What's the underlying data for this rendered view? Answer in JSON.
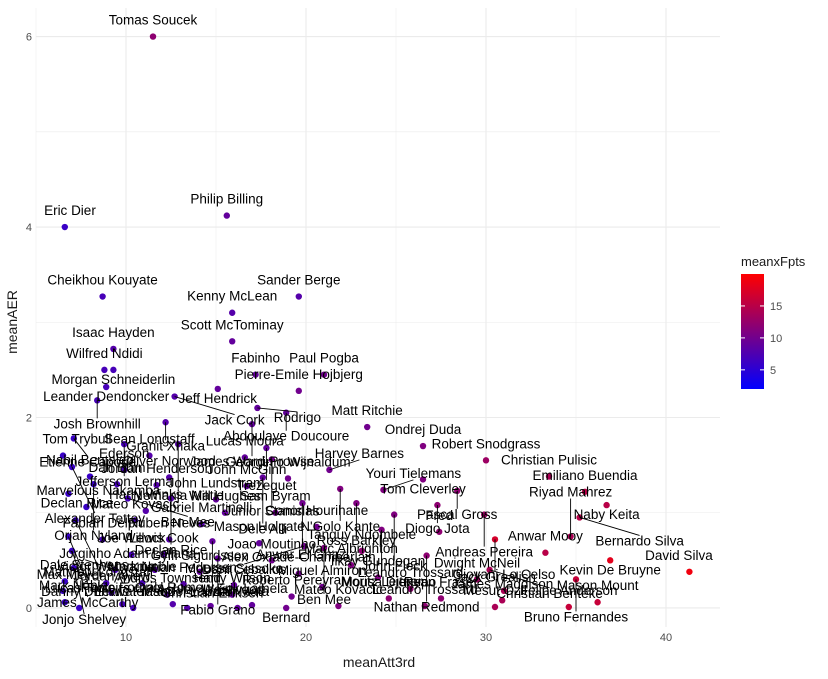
{
  "chart_data": {
    "type": "scatter",
    "title": "",
    "xlabel": "meanAtt3rd",
    "ylabel": "meanAER",
    "xlim": [
      5,
      43
    ],
    "ylim": [
      -0.2,
      6.3
    ],
    "x_ticks": [
      10,
      20,
      30,
      40
    ],
    "y_ticks": [
      0,
      2,
      4,
      6
    ],
    "grid": true,
    "color_scale": {
      "name": "meanxFpts",
      "low_color": "#0000FF",
      "high_color": "#FF0000",
      "range": [
        2,
        20
      ],
      "ticks": [
        5,
        10,
        15
      ]
    },
    "points": [
      {
        "x": 11.5,
        "y": 6.0,
        "c": 12,
        "label": "Tomas Soucek"
      },
      {
        "x": 6.6,
        "y": 4.0,
        "c": 6,
        "label": "Eric Dier"
      },
      {
        "x": 15.6,
        "y": 4.12,
        "c": 9,
        "label": "Philip Billing"
      },
      {
        "x": 8.7,
        "y": 3.27,
        "c": 7,
        "label": "Cheikhou Kouyate"
      },
      {
        "x": 19.6,
        "y": 3.27,
        "c": 8,
        "label": "Sander Berge"
      },
      {
        "x": 15.9,
        "y": 3.1,
        "c": 8,
        "label": "Kenny McLean"
      },
      {
        "x": 9.3,
        "y": 2.72,
        "c": 8,
        "label": "Isaac Hayden"
      },
      {
        "x": 15.9,
        "y": 2.8,
        "c": 9,
        "label": "Scott McTominay"
      },
      {
        "x": 8.8,
        "y": 2.5,
        "c": 7,
        "label": "Wilfred Ndidi"
      },
      {
        "x": 9.3,
        "y": 2.5,
        "c": 7,
        "label": "Morgan Schneiderlin"
      },
      {
        "x": 17.2,
        "y": 2.45,
        "c": 9,
        "label": "Fabinho"
      },
      {
        "x": 21.0,
        "y": 2.45,
        "c": 10,
        "label": "Paul Pogba"
      },
      {
        "x": 8.9,
        "y": 2.32,
        "c": 7,
        "label": "Leander Dendoncker"
      },
      {
        "x": 15.1,
        "y": 2.3,
        "c": 9,
        "label": "Jeff Hendrick"
      },
      {
        "x": 19.6,
        "y": 2.28,
        "c": 10,
        "label": "Pierre-Emile Hojbjerg"
      },
      {
        "x": 8.4,
        "y": 2.18,
        "c": 7,
        "label": "Josh Brownhill"
      },
      {
        "x": 12.7,
        "y": 2.22,
        "c": 8,
        "label": "Jack Cork"
      },
      {
        "x": 17.3,
        "y": 2.1,
        "c": 9,
        "label": "Rodrigo"
      },
      {
        "x": 18.9,
        "y": 2.05,
        "c": 9,
        "label": "Abdoulaye Doucoure"
      },
      {
        "x": 12.2,
        "y": 1.95,
        "c": 8,
        "label": "Granit Xhaka"
      },
      {
        "x": 17.0,
        "y": 1.93,
        "c": 9,
        "label": "James Ward-Prowse"
      },
      {
        "x": 23.4,
        "y": 1.9,
        "c": 10,
        "label": "Matt Ritchie"
      },
      {
        "x": 7.1,
        "y": 1.78,
        "c": 6,
        "label": "Etienne Capoue"
      },
      {
        "x": 9.9,
        "y": 1.72,
        "c": 7,
        "label": "Jefferson Lerma"
      },
      {
        "x": 12.9,
        "y": 1.72,
        "c": 8,
        "label": "Nemanja Matic"
      },
      {
        "x": 17.8,
        "y": 1.68,
        "c": 9,
        "label": "Trezeguet"
      },
      {
        "x": 26.5,
        "y": 1.7,
        "c": 11,
        "label": "Ondrej Duda"
      },
      {
        "x": 6.5,
        "y": 1.6,
        "c": 6,
        "label": "Tom Trybull"
      },
      {
        "x": 11.3,
        "y": 1.6,
        "c": 8,
        "label": "Sean Longstaff"
      },
      {
        "x": 16.6,
        "y": 1.58,
        "c": 9,
        "label": "Lucas Moura"
      },
      {
        "x": 18.1,
        "y": 1.56,
        "c": 10,
        "label": "Junior Stanislas"
      },
      {
        "x": 30.0,
        "y": 1.55,
        "c": 13,
        "label": "Robert Snodgrass"
      },
      {
        "x": 7.0,
        "y": 1.48,
        "c": 6,
        "label": "Alexander Tettey"
      },
      {
        "x": 9.9,
        "y": 1.45,
        "c": 7,
        "label": "Ederson"
      },
      {
        "x": 21.3,
        "y": 1.45,
        "c": 10,
        "label": "Harvey Barnes"
      },
      {
        "x": 8.0,
        "y": 1.38,
        "c": 6,
        "label": "Nabil Bentaleb"
      },
      {
        "x": 12.4,
        "y": 1.37,
        "c": 8,
        "label": "Oliver Norwood"
      },
      {
        "x": 17.6,
        "y": 1.37,
        "c": 9,
        "label": "Dele Alli"
      },
      {
        "x": 19.0,
        "y": 1.36,
        "c": 10,
        "label": "Georginio Wijnaldum"
      },
      {
        "x": 26.5,
        "y": 1.35,
        "c": 11,
        "label": "Tom Cleverley"
      },
      {
        "x": 33.5,
        "y": 1.38,
        "c": 14,
        "label": "Christian Pulisic"
      },
      {
        "x": 8.2,
        "y": 1.3,
        "c": 6,
        "label": "Orjan Nyland"
      },
      {
        "x": 9.5,
        "y": 1.3,
        "c": 7,
        "label": "Dan Burn"
      },
      {
        "x": 11.7,
        "y": 1.29,
        "c": 8,
        "label": "Jordan Henderson"
      },
      {
        "x": 16.7,
        "y": 1.28,
        "c": 9,
        "label": "John McGinn"
      },
      {
        "x": 21.9,
        "y": 1.25,
        "c": 11,
        "label": "N'Golo Kante"
      },
      {
        "x": 24.3,
        "y": 1.24,
        "c": 11,
        "label": "Youri Tielemans"
      },
      {
        "x": 28.4,
        "y": 1.23,
        "c": 12,
        "label": "Pascal Gross"
      },
      {
        "x": 35.5,
        "y": 1.22,
        "c": 15,
        "label": "Emiliano Buendia"
      },
      {
        "x": 6.8,
        "y": 1.2,
        "c": 6,
        "label": "Declan Rice"
      },
      {
        "x": 10.1,
        "y": 1.15,
        "c": 7,
        "label": "Ben Mee"
      },
      {
        "x": 12.5,
        "y": 1.15,
        "c": 8,
        "label": "Declan Rice"
      },
      {
        "x": 15.0,
        "y": 1.14,
        "c": 9,
        "label": "John Lundstram"
      },
      {
        "x": 19.8,
        "y": 1.1,
        "c": 10,
        "label": "Anwar El Ghazi"
      },
      {
        "x": 22.8,
        "y": 1.1,
        "c": 11,
        "label": "Ross Barkley"
      },
      {
        "x": 27.3,
        "y": 1.08,
        "c": 12,
        "label": "Diogo Jota"
      },
      {
        "x": 36.7,
        "y": 1.08,
        "c": 15,
        "label": "Naby Keita"
      },
      {
        "x": 7.8,
        "y": 1.06,
        "c": 6,
        "label": "Marvelous Nakamba"
      },
      {
        "x": 11.1,
        "y": 1.02,
        "c": 8,
        "label": "Harry Winks"
      },
      {
        "x": 15.5,
        "y": 1.0,
        "c": 9,
        "label": "Will Hughes"
      },
      {
        "x": 18.3,
        "y": 1.0,
        "c": 10,
        "label": "Sam Byram"
      },
      {
        "x": 24.9,
        "y": 0.98,
        "c": 11,
        "label": "John Fleck"
      },
      {
        "x": 29.9,
        "y": 0.98,
        "c": 13,
        "label": "Andreas Pereira"
      },
      {
        "x": 35.2,
        "y": 0.95,
        "c": 15,
        "label": "Bernardo Silva"
      },
      {
        "x": 7.2,
        "y": 0.92,
        "c": 6,
        "label": "Matthew Longstaff"
      },
      {
        "x": 10.5,
        "y": 0.92,
        "c": 7,
        "label": "Mateo Kovacic"
      },
      {
        "x": 14.2,
        "y": 0.88,
        "c": 8,
        "label": "Gabriel Martinelli"
      },
      {
        "x": 20.6,
        "y": 0.85,
        "c": 10,
        "label": "Conor Hourihane"
      },
      {
        "x": 24.2,
        "y": 0.82,
        "c": 11,
        "label": "Moritz Leitner"
      },
      {
        "x": 27.4,
        "y": 0.8,
        "c": 12,
        "label": "Fred"
      },
      {
        "x": 30.5,
        "y": 0.72,
        "c": 17,
        "label": "Jack Grealish"
      },
      {
        "x": 34.7,
        "y": 0.75,
        "c": 14,
        "label": "Riyad Mahrez"
      },
      {
        "x": 6.8,
        "y": 0.75,
        "c": 6,
        "label": "Lucas Torreira"
      },
      {
        "x": 8.7,
        "y": 0.72,
        "c": 7,
        "label": "Fabian Delph"
      },
      {
        "x": 12.4,
        "y": 0.72,
        "c": 8,
        "label": "Ruben Neves"
      },
      {
        "x": 14.8,
        "y": 0.7,
        "c": 9,
        "label": "Christian Eriksen"
      },
      {
        "x": 17.4,
        "y": 0.68,
        "c": 9,
        "label": "Mason Holgate"
      },
      {
        "x": 19.9,
        "y": 0.65,
        "c": 10,
        "label": "Dani Ceballos"
      },
      {
        "x": 21.0,
        "y": 0.63,
        "c": 11,
        "label": "Ben Mee"
      },
      {
        "x": 23.1,
        "y": 0.6,
        "c": 12,
        "label": "Tanguy Ndombele"
      },
      {
        "x": 26.7,
        "y": 0.55,
        "c": 12,
        "label": "Nathan Redmond"
      },
      {
        "x": 33.3,
        "y": 0.58,
        "c": 15,
        "label": "Anwar Mooy"
      },
      {
        "x": 36.9,
        "y": 0.5,
        "c": 18,
        "label": "Kevin De Bruyne"
      },
      {
        "x": 7.0,
        "y": 0.6,
        "c": 6,
        "label": "James McCarthy"
      },
      {
        "x": 10.3,
        "y": 0.56,
        "c": 7,
        "label": "Joe Willock"
      },
      {
        "x": 12.1,
        "y": 0.56,
        "c": 8,
        "label": "Lewis Cook"
      },
      {
        "x": 15.1,
        "y": 0.52,
        "c": 9,
        "label": "Fabio Grano"
      },
      {
        "x": 18.1,
        "y": 0.5,
        "c": 10,
        "label": "Joao Moutinho"
      },
      {
        "x": 22.5,
        "y": 0.45,
        "c": 11,
        "label": "Marc Albrighton"
      },
      {
        "x": 30.2,
        "y": 0.4,
        "c": 14,
        "label": "Christian Benteke"
      },
      {
        "x": 41.3,
        "y": 0.38,
        "c": 19,
        "label": "David Silva"
      },
      {
        "x": 7.1,
        "y": 0.42,
        "c": 6,
        "label": "Jonjo Shelvey"
      },
      {
        "x": 9.4,
        "y": 0.4,
        "c": 7,
        "label": "Jorginho"
      },
      {
        "x": 11.6,
        "y": 0.4,
        "c": 8,
        "label": "Adam Lallana"
      },
      {
        "x": 14.1,
        "y": 0.38,
        "c": 9,
        "label": "Gylfi Sigurdsson"
      },
      {
        "x": 19.6,
        "y": 0.36,
        "c": 10,
        "label": "Alex Oxlade-Chamberlain"
      },
      {
        "x": 24.0,
        "y": 0.32,
        "c": 11,
        "label": "Ilkay Gundogan"
      },
      {
        "x": 29.5,
        "y": 0.3,
        "c": 13,
        "label": "Dwight McNeil"
      },
      {
        "x": 35.0,
        "y": 0.3,
        "c": 16,
        "label": "Bruno Fernandes"
      },
      {
        "x": 6.6,
        "y": 0.28,
        "c": 6,
        "label": "Dale Stephens"
      },
      {
        "x": 8.9,
        "y": 0.26,
        "c": 7,
        "label": "Victor Wanyama"
      },
      {
        "x": 10.9,
        "y": 0.26,
        "c": 7,
        "label": "Mark Noble"
      },
      {
        "x": 13.2,
        "y": 0.25,
        "c": 8,
        "label": "Kristian Pedersen"
      },
      {
        "x": 16.0,
        "y": 0.24,
        "c": 9,
        "label": "Moussa Sissoko"
      },
      {
        "x": 20.9,
        "y": 0.22,
        "c": 10,
        "label": "Miguel Almiron"
      },
      {
        "x": 25.8,
        "y": 0.2,
        "c": 12,
        "label": "Leandro Trossard"
      },
      {
        "x": 31.0,
        "y": 0.18,
        "c": 14,
        "label": "Giovani Lo Celso"
      },
      {
        "x": 6.5,
        "y": 0.18,
        "c": 6,
        "label": "Max Meyer"
      },
      {
        "x": 9.2,
        "y": 0.16,
        "c": 7,
        "label": "Jordan Ayew"
      },
      {
        "x": 12.3,
        "y": 0.14,
        "c": 8,
        "label": "Andros Townsend"
      },
      {
        "x": 15.9,
        "y": 0.14,
        "c": 9,
        "label": "Harry Wilson"
      },
      {
        "x": 19.2,
        "y": 0.12,
        "c": 10,
        "label": "Roberto Pereyra"
      },
      {
        "x": 24.6,
        "y": 0.1,
        "c": 12,
        "label": "Mousa Djenepo"
      },
      {
        "x": 27.5,
        "y": 0.1,
        "c": 12,
        "label": "Ryan Fraser"
      },
      {
        "x": 30.9,
        "y": 0.08,
        "c": 14,
        "label": "James Maddison"
      },
      {
        "x": 36.2,
        "y": 0.06,
        "c": 16,
        "label": "Mason Mount"
      },
      {
        "x": 6.6,
        "y": 0.06,
        "c": 6,
        "label": "Mark Noble"
      },
      {
        "x": 9.8,
        "y": 0.04,
        "c": 7,
        "label": "Pablo Fornals"
      },
      {
        "x": 12.6,
        "y": 0.04,
        "c": 8,
        "label": "Oriol Romeu"
      },
      {
        "x": 17.0,
        "y": 0.03,
        "c": 9,
        "label": "Erik Lamela"
      },
      {
        "x": 21.8,
        "y": 0.02,
        "c": 11,
        "label": "Mateo Kovacic"
      },
      {
        "x": 26.6,
        "y": 0.02,
        "c": 12,
        "label": "Leandro Trossard"
      },
      {
        "x": 30.5,
        "y": 0.01,
        "c": 14,
        "label": "Mesut Ozil"
      },
      {
        "x": 34.6,
        "y": 0.01,
        "c": 16,
        "label": "Felipe Anderson"
      },
      {
        "x": 7.4,
        "y": 0.0,
        "c": 6,
        "label": "Danny Drinkwater"
      },
      {
        "x": 10.4,
        "y": 0.0,
        "c": 7,
        "label": "Lewis Fraser"
      },
      {
        "x": 13.4,
        "y": 0.0,
        "c": 8,
        "label": "Manuel Lanzini"
      },
      {
        "x": 16.2,
        "y": 0.0,
        "c": 9,
        "label": "Juan Mata"
      },
      {
        "x": 18.9,
        "y": 0.0,
        "c": 10,
        "label": "Bernard"
      },
      {
        "x": 14.7,
        "y": 0.02,
        "c": 9,
        "label": "Ashley Westwood"
      }
    ]
  }
}
